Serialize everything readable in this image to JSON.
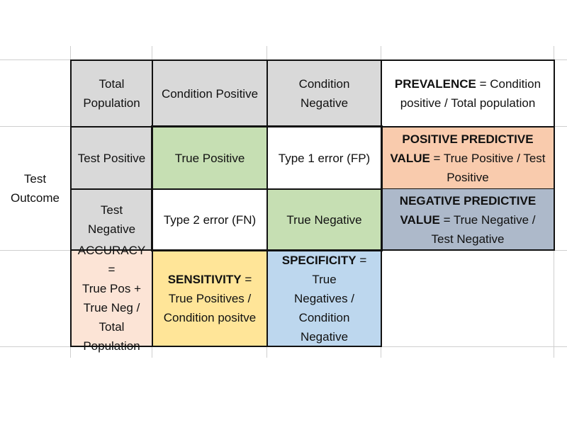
{
  "side_label": "Test\nOutcome",
  "header": {
    "total_population": "Total\nPopulation",
    "condition_positive": "Condition Positive",
    "condition_negative": "Condition\nNegative",
    "prevalence_bold": "PREVALENCE",
    "prevalence_rest": " = Condition\npositive / Total population"
  },
  "rows": {
    "test_positive": "Test Positive",
    "test_negative": "Test\nNegative"
  },
  "matrix": {
    "true_positive": "True Positive",
    "type1": "Type 1 error (FP)",
    "type2": "Type 2 error (FN)",
    "true_negative": "True Negative"
  },
  "ppv": {
    "bold": "POSITIVE PREDICTIVE\nVALUE",
    "rest": " = True Positive / Test\nPositive"
  },
  "npv": {
    "bold": "NEGATIVE PREDICTIVE\nVALUE",
    "rest": " = True Negative /\nTest Negative"
  },
  "accuracy": "ACCURACY =\nTrue Pos +\nTrue Neg /\nTotal\nPopulation",
  "sensitivity": {
    "bold": "SENSITIVITY",
    "rest": " =\nTrue Positives /\nCondition positve"
  },
  "specificity": {
    "bold": "SPECIFICITY",
    "rest": " = True\nNegatives /\nCondition\nNegative"
  },
  "colors": {
    "header_gray": "#d9d9d9",
    "green": "#c6dfb3",
    "ppv_peach": "#f9cbad",
    "npv_slate": "#adb9ca",
    "accuracy_pink": "#fce4d6",
    "sensitivity_yellow": "#ffe598",
    "specificity_blue": "#bdd7ee"
  }
}
